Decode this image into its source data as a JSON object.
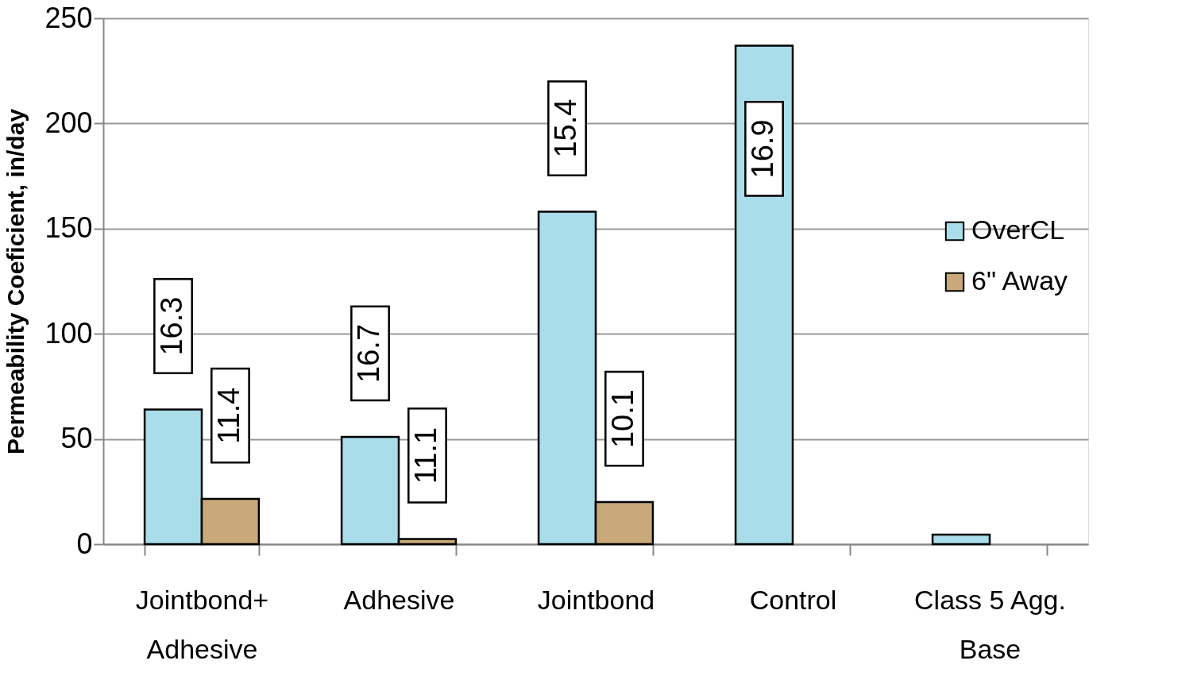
{
  "chart_data": {
    "type": "bar",
    "ylabel": "Permeability Coeficient, in/day",
    "categories": [
      "Jointbond+\nAdhesive",
      "Adhesive",
      "Jointbond",
      "Control",
      "Class 5 Agg.\nBase"
    ],
    "series": [
      {
        "name": "OverCL",
        "color": "#a8dde9",
        "values": [
          64,
          51,
          158,
          237,
          4.5
        ]
      },
      {
        "name": "6\" Away",
        "color": "#c9a87a",
        "values": [
          21.5,
          2.5,
          20,
          null,
          null
        ]
      }
    ],
    "ylim": [
      0,
      250
    ],
    "yticks": [
      0,
      50,
      100,
      150,
      200,
      250
    ],
    "grid": "y",
    "legend": "right",
    "annotations": [
      "16.3",
      "11.4",
      "16.7",
      "11.1",
      "15.4",
      "10.1",
      "16.9"
    ]
  }
}
